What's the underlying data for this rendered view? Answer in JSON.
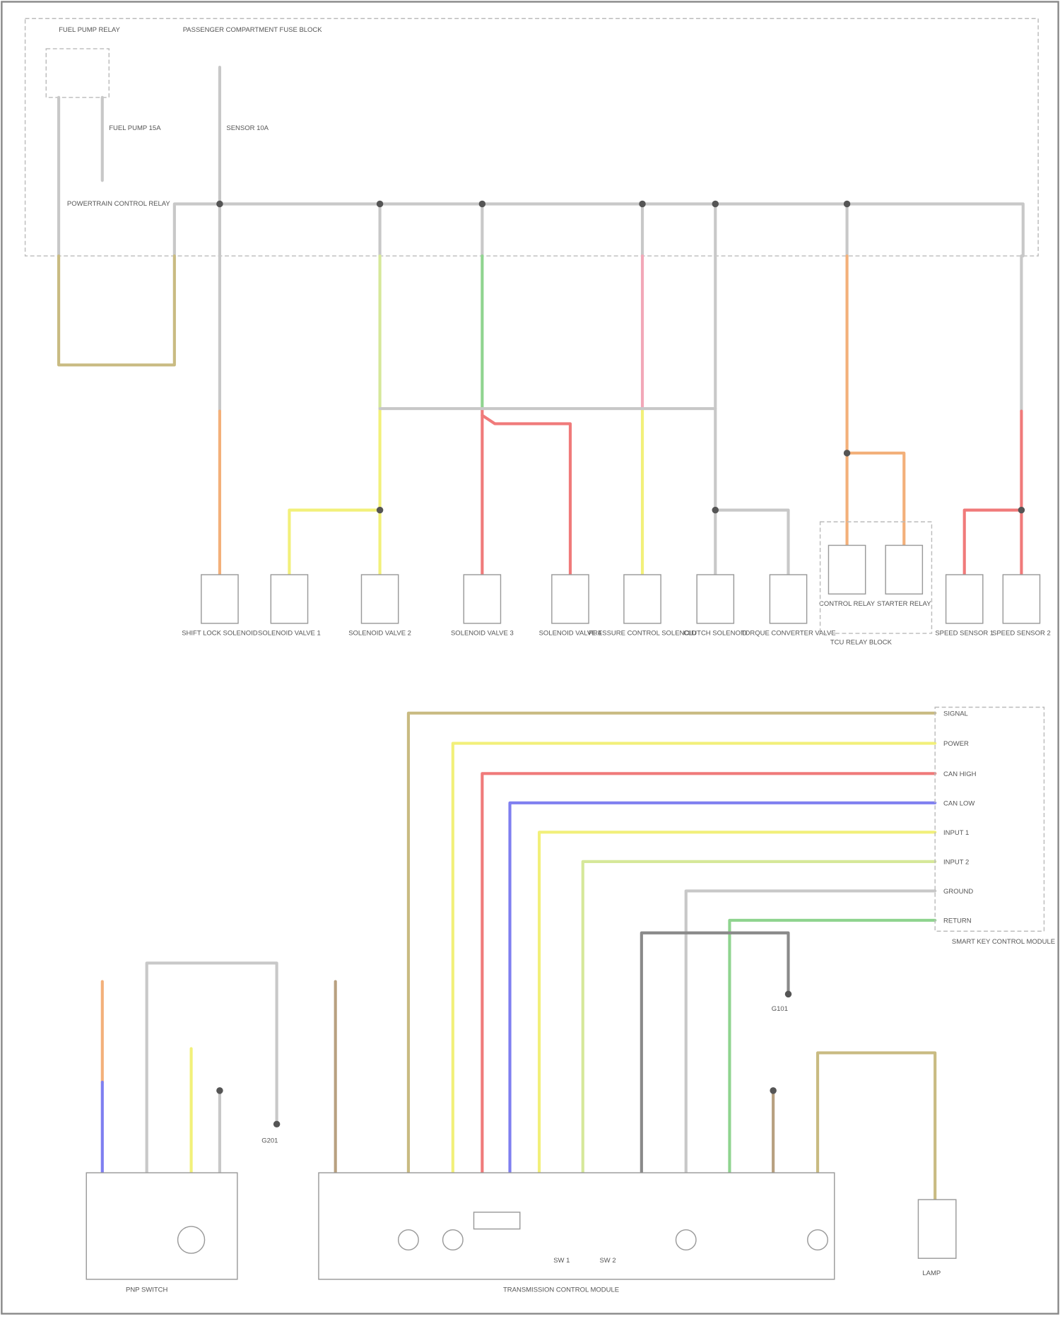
{
  "page_id": "",
  "top_labels": {
    "relay": "FUEL PUMP RELAY",
    "fuse_block": "PASSENGER COMPARTMENT FUSE BLOCK",
    "fuse_a": "FUEL PUMP 15A",
    "fuse_b": "SENSOR 10A",
    "pcm_relay": "POWERTRAIN CONTROL RELAY"
  },
  "components": [
    "SHIFT LOCK SOLENOID",
    "SOLENOID VALVE 1",
    "SOLENOID VALVE 2",
    "SOLENOID VALVE 3",
    "SOLENOID VALVE 4",
    "PRESSURE CONTROL SOLENOID",
    "CLUTCH SOLENOID",
    "TORQUE CONVERTER VALVE",
    "CONTROL RELAY",
    "STARTER RELAY",
    "SPEED SENSOR 1",
    "SPEED SENSOR 2"
  ],
  "relay_block_label": "TCU RELAY BLOCK",
  "connector": {
    "title": "SMART KEY CONTROL MODULE",
    "pins": [
      "SIGNAL",
      "POWER",
      "CAN HIGH",
      "CAN LOW",
      "INPUT 1",
      "INPUT 2",
      "GROUND",
      "RETURN"
    ]
  },
  "bottom_labels": {
    "left_module": "PNP SWITCH",
    "tcm": "TRANSMISSION CONTROL MODULE",
    "ground_a": "G101",
    "ground_b": "G201",
    "lamp": "LAMP",
    "switch_a": "SW 1",
    "switch_b": "SW 2"
  },
  "wire_colors": {
    "tan": "#c9bb82",
    "orange": "#f3b07a",
    "yellow": "#f2f07a",
    "yellowgreen": "#d6e89a",
    "green": "#8fd48f",
    "red": "#f07a7a",
    "pink": "#f2a8b8",
    "blue": "#7f7ff0",
    "gray": "#c8c8c8",
    "darkgray": "#8a8a8a",
    "brown": "#b8a080"
  }
}
